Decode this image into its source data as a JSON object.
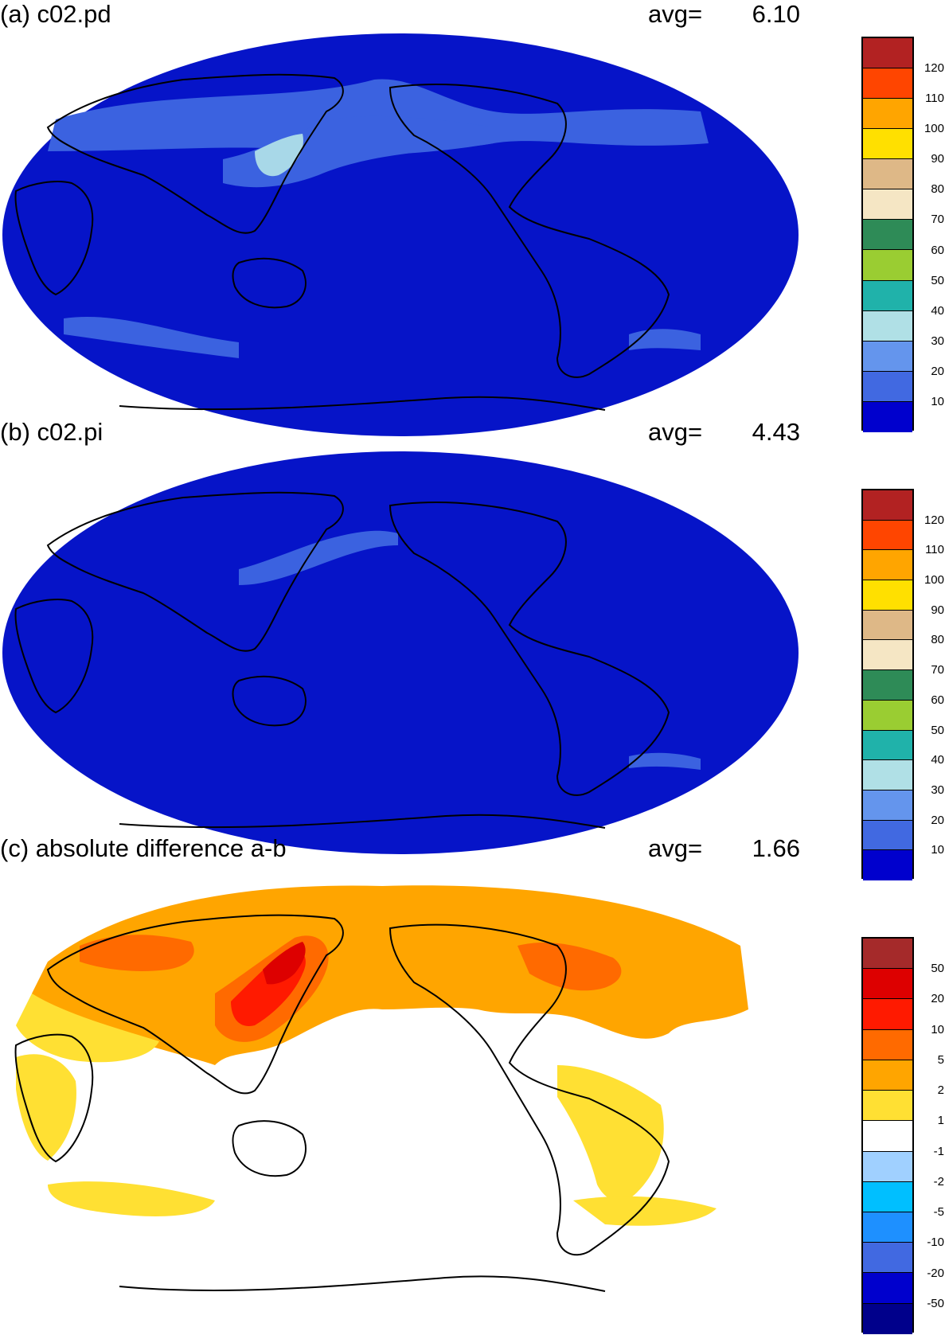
{
  "panels": [
    {
      "title": "(a) c02.pd",
      "avg_label": "avg=",
      "avg_value": "6.10",
      "map_fill": "#0614c8",
      "colorbar": {
        "colors": [
          "#b22222",
          "#ff4500",
          "#ffa500",
          "#ffe000",
          "#deb887",
          "#f5e6c4",
          "#2e8b57",
          "#9acd32",
          "#20b2aa",
          "#b0e0e6",
          "#6495ed",
          "#4169e1",
          "#0000cd"
        ],
        "labels": [
          "120",
          "110",
          "100",
          "90",
          "80",
          "70",
          "60",
          "50",
          "40",
          "30",
          "20",
          "10"
        ]
      }
    },
    {
      "title": "(b) c02.pi",
      "avg_label": "avg=",
      "avg_value": "4.43",
      "map_fill": "#0614c8",
      "colorbar": {
        "colors": [
          "#b22222",
          "#ff4500",
          "#ffa500",
          "#ffe000",
          "#deb887",
          "#f5e6c4",
          "#2e8b57",
          "#9acd32",
          "#20b2aa",
          "#b0e0e6",
          "#6495ed",
          "#4169e1",
          "#0000cd"
        ],
        "labels": [
          "120",
          "110",
          "100",
          "90",
          "80",
          "70",
          "60",
          "50",
          "40",
          "30",
          "20",
          "10"
        ]
      }
    },
    {
      "title": "(c) absolute difference a-b",
      "avg_label": "avg=",
      "avg_value": "1.66",
      "map_fill": "#ffffff",
      "colorbar": {
        "colors": [
          "#a52a2a",
          "#dd0000",
          "#ff1a00",
          "#ff6a00",
          "#ffa500",
          "#ffe033",
          "#ffffff",
          "#a0d0ff",
          "#00bfff",
          "#1e90ff",
          "#4169e1",
          "#0000cd",
          "#00008b"
        ],
        "labels": [
          "50",
          "20",
          "10",
          "5",
          "2",
          "1",
          "-1",
          "-2",
          "-5",
          "-10",
          "-20",
          "-50"
        ]
      }
    }
  ]
}
